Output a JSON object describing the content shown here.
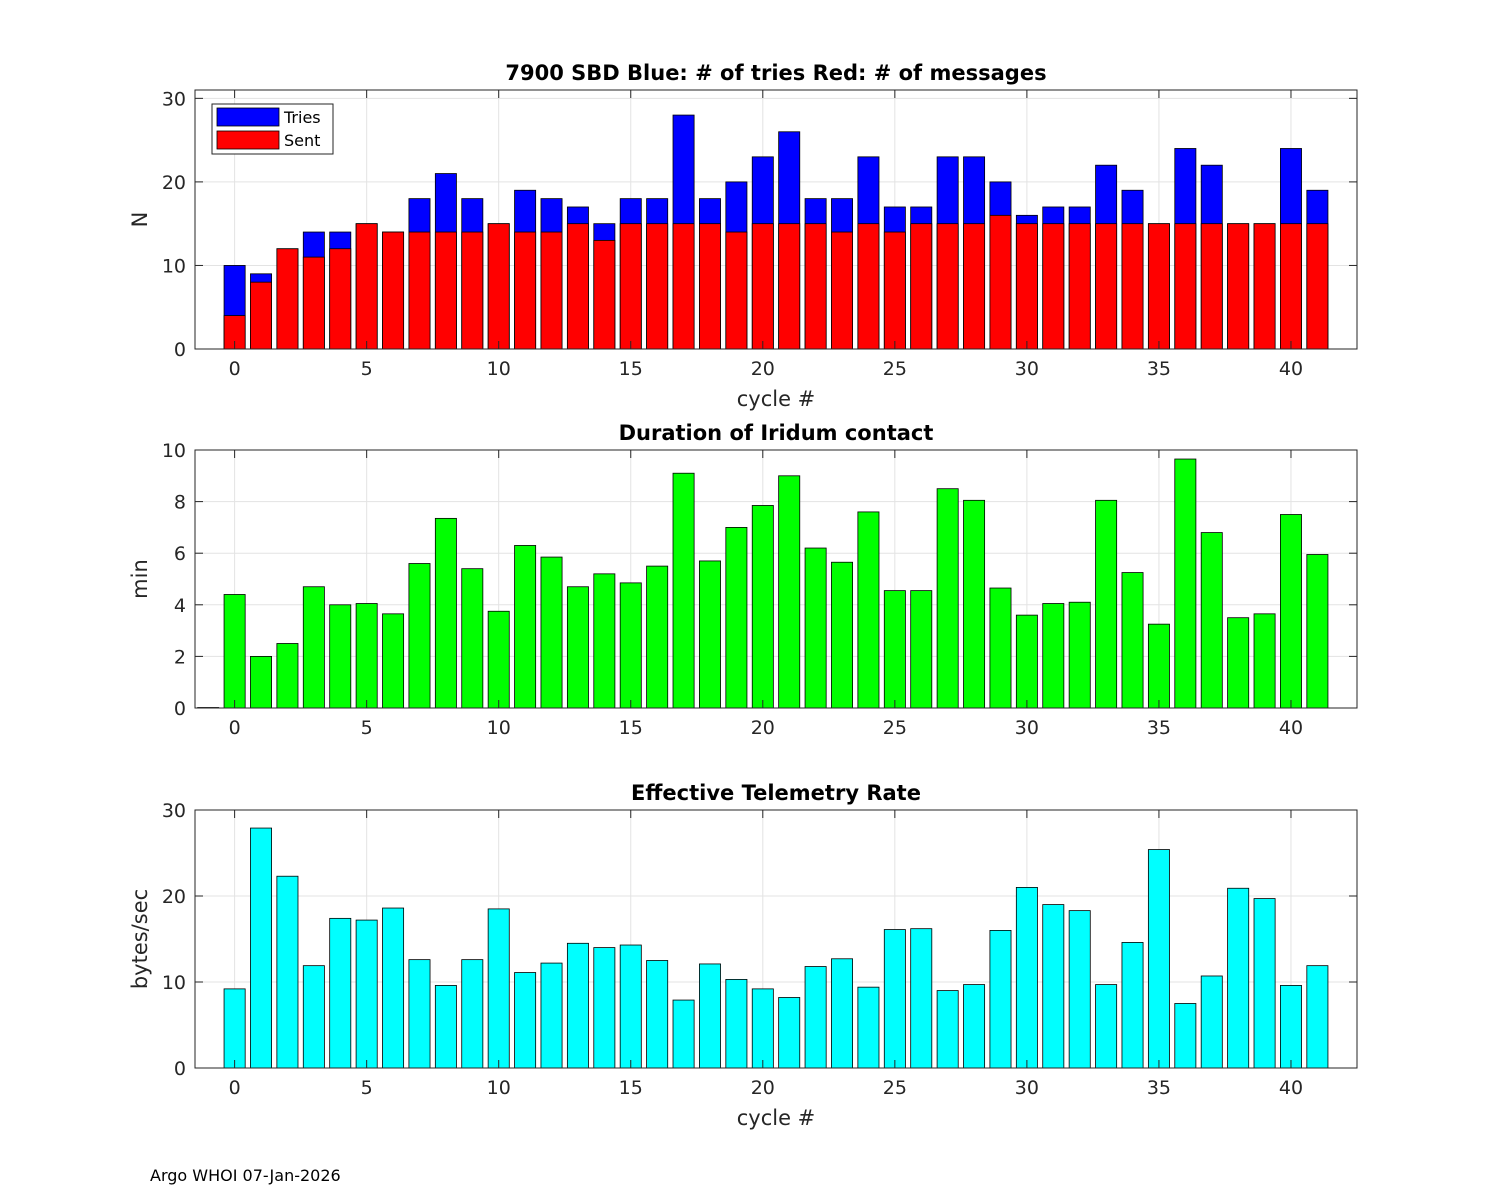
{
  "footer": "Argo WHOI 07-Jan-2026",
  "colors": {
    "tries": "#0000ff",
    "sent": "#ff0000",
    "duration": "#00ff00",
    "rate": "#00ffff",
    "grid": "#dcdcdc"
  },
  "chart_data": [
    {
      "type": "bar",
      "stacked": "overlay",
      "title": "7900 SBD  Blue: # of tries   Red: # of messages",
      "xlabel": "cycle #",
      "ylabel": "N",
      "xlim": [
        -1.5,
        42.5
      ],
      "ylim": [
        0,
        31
      ],
      "xticks": [
        0,
        5,
        10,
        15,
        20,
        25,
        30,
        35,
        40
      ],
      "yticks": [
        0,
        10,
        20,
        30
      ],
      "grid": true,
      "legend": {
        "position": "top-left",
        "entries": [
          "Tries",
          "Sent"
        ]
      },
      "x": [
        0,
        1,
        2,
        3,
        4,
        5,
        6,
        7,
        8,
        9,
        10,
        11,
        12,
        13,
        14,
        15,
        16,
        17,
        18,
        19,
        20,
        21,
        22,
        23,
        24,
        25,
        26,
        27,
        28,
        29,
        30,
        31,
        32,
        33,
        34,
        35,
        36,
        37,
        38,
        39,
        40,
        41
      ],
      "series": [
        {
          "name": "Tries",
          "color": "#0000ff",
          "values": [
            10,
            9,
            12,
            14,
            14,
            15,
            14,
            18,
            21,
            18,
            15,
            19,
            18,
            17,
            15,
            18,
            18,
            28,
            18,
            20,
            23,
            26,
            18,
            18,
            23,
            17,
            17,
            23,
            23,
            20,
            16,
            17,
            17,
            22,
            19,
            15,
            24,
            22,
            15,
            15,
            24,
            19
          ]
        },
        {
          "name": "Sent",
          "color": "#ff0000",
          "values": [
            4,
            8,
            12,
            11,
            12,
            15,
            14,
            14,
            14,
            14,
            15,
            14,
            14,
            15,
            13,
            15,
            15,
            15,
            15,
            14,
            15,
            15,
            15,
            14,
            15,
            14,
            15,
            15,
            15,
            16,
            15,
            15,
            15,
            15,
            15,
            15,
            15,
            15,
            15,
            15,
            15,
            15
          ]
        }
      ]
    },
    {
      "type": "bar",
      "title": "Duration of Iridum contact",
      "xlabel": "",
      "ylabel": "min",
      "xlim": [
        -1.5,
        42.5
      ],
      "ylim": [
        0,
        10
      ],
      "xticks": [
        0,
        5,
        10,
        15,
        20,
        25,
        30,
        35,
        40
      ],
      "yticks": [
        0,
        2,
        4,
        6,
        8,
        10
      ],
      "grid": true,
      "x": [
        -1,
        0,
        1,
        2,
        3,
        4,
        5,
        6,
        7,
        8,
        9,
        10,
        11,
        12,
        13,
        14,
        15,
        16,
        17,
        18,
        19,
        20,
        21,
        22,
        23,
        24,
        25,
        26,
        27,
        28,
        29,
        30,
        31,
        32,
        33,
        34,
        35,
        36,
        37,
        38,
        39,
        40,
        41
      ],
      "series": [
        {
          "name": "Duration",
          "color": "#00ff00",
          "values": [
            0,
            4.4,
            2.0,
            2.5,
            4.7,
            4.0,
            4.05,
            3.65,
            5.6,
            7.35,
            5.4,
            3.75,
            6.3,
            5.85,
            4.7,
            5.2,
            4.85,
            5.5,
            9.1,
            5.7,
            7.0,
            7.85,
            9.0,
            6.2,
            5.65,
            7.6,
            4.55,
            4.55,
            8.5,
            8.05,
            4.65,
            3.6,
            4.05,
            4.1,
            8.05,
            5.25,
            3.25,
            9.65,
            6.8,
            3.5,
            3.65,
            7.5,
            5.95
          ]
        }
      ]
    },
    {
      "type": "bar",
      "title": "Effective Telemetry Rate",
      "xlabel": "cycle #",
      "ylabel": "bytes/sec",
      "xlim": [
        -1.5,
        42.5
      ],
      "ylim": [
        0,
        30
      ],
      "xticks": [
        0,
        5,
        10,
        15,
        20,
        25,
        30,
        35,
        40
      ],
      "yticks": [
        0,
        10,
        20,
        30
      ],
      "grid": true,
      "x": [
        0,
        1,
        2,
        3,
        4,
        5,
        6,
        7,
        8,
        9,
        10,
        11,
        12,
        13,
        14,
        15,
        16,
        17,
        18,
        19,
        20,
        21,
        22,
        23,
        24,
        25,
        26,
        27,
        28,
        29,
        30,
        31,
        32,
        33,
        34,
        35,
        36,
        37,
        38,
        39,
        40,
        41
      ],
      "series": [
        {
          "name": "Rate",
          "color": "#00ffff",
          "values": [
            9.2,
            27.9,
            22.3,
            11.9,
            17.4,
            17.2,
            18.6,
            12.6,
            9.6,
            12.6,
            18.5,
            11.1,
            12.2,
            14.5,
            14.0,
            14.3,
            12.5,
            7.9,
            12.1,
            10.3,
            9.2,
            8.2,
            11.8,
            12.7,
            9.4,
            16.1,
            16.2,
            9.0,
            9.7,
            16.0,
            21.0,
            19.0,
            18.3,
            9.7,
            14.6,
            25.4,
            7.5,
            10.7,
            20.9,
            19.7,
            9.6,
            11.9
          ]
        }
      ]
    }
  ]
}
